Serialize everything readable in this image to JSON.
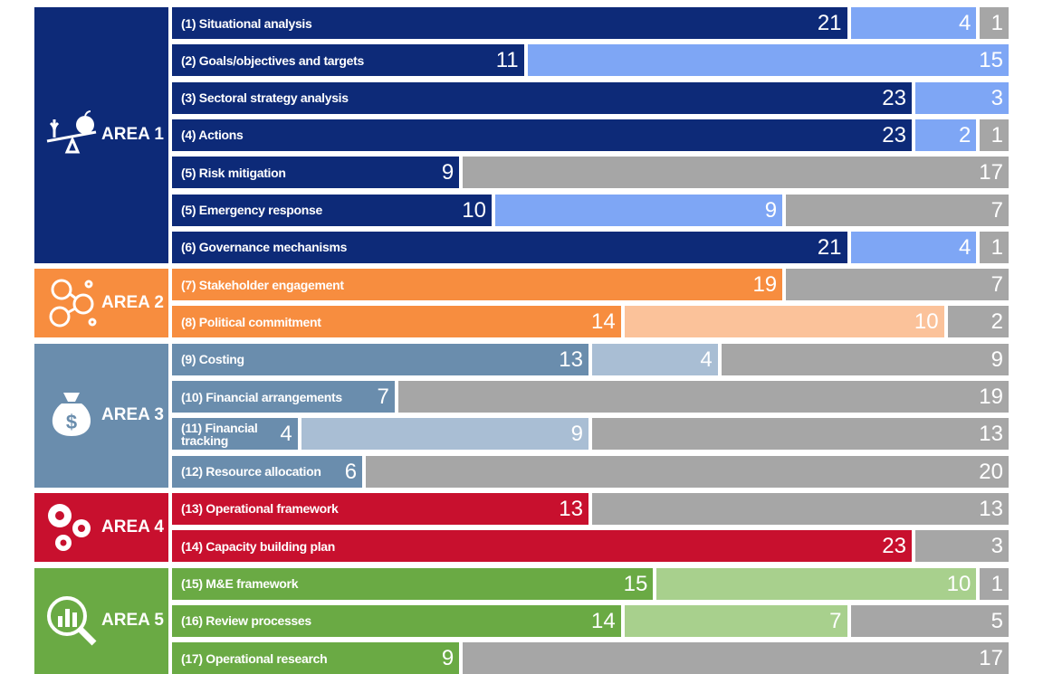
{
  "chart_data": {
    "type": "stacked-bar",
    "orientation": "horizontal",
    "xlim": [
      0,
      26
    ],
    "gap_color": "#a6a6a6",
    "areas": [
      {
        "label": "AREA 1",
        "color": "#0d2a78",
        "light": "#7ea6f5"
      },
      {
        "label": "AREA 2",
        "color": "#f78d3f",
        "light": "#fbc29a"
      },
      {
        "label": "AREA 3",
        "color": "#6a8dad",
        "light": "#a9bed4"
      },
      {
        "label": "AREA 4",
        "color": "#c8102e",
        "light": "#e88a98"
      },
      {
        "label": "AREA 5",
        "color": "#6aaa44",
        "light": "#a8d08d"
      }
    ],
    "rows": [
      {
        "label": "(1) Situational analysis",
        "area": 0,
        "values": [
          21,
          4,
          1
        ]
      },
      {
        "label": "(2) Goals/objectives and targets",
        "area": 0,
        "values": [
          11,
          15,
          null
        ]
      },
      {
        "label": "(3) Sectoral strategy analysis",
        "area": 0,
        "values": [
          23,
          3,
          null
        ]
      },
      {
        "label": "(4) Actions",
        "area": 0,
        "values": [
          23,
          2,
          1
        ]
      },
      {
        "label": "(5) Risk mitigation",
        "area": 0,
        "values": [
          9,
          null,
          17
        ]
      },
      {
        "label": "(5) Emergency response",
        "area": 0,
        "values": [
          10,
          9,
          7
        ]
      },
      {
        "label": "(6) Governance mechanisms",
        "area": 0,
        "values": [
          21,
          4,
          1
        ]
      },
      {
        "label": "(7) Stakeholder engagement",
        "area": 1,
        "values": [
          19,
          null,
          7
        ]
      },
      {
        "label": "(8) Political commitment",
        "area": 1,
        "values": [
          14,
          10,
          2
        ]
      },
      {
        "label": "(9) Costing",
        "area": 2,
        "values": [
          13,
          4,
          9
        ]
      },
      {
        "label": "(10) Financial arrangements",
        "area": 2,
        "values": [
          7,
          null,
          19
        ]
      },
      {
        "label": "(11) Financial tracking",
        "area": 2,
        "values": [
          4,
          9,
          13
        ]
      },
      {
        "label": "(12) Resource allocation",
        "area": 2,
        "values": [
          6,
          null,
          20
        ]
      },
      {
        "label": "(13) Operational framework",
        "area": 3,
        "values": [
          13,
          null,
          13
        ]
      },
      {
        "label": "(14) Capacity building plan",
        "area": 3,
        "values": [
          23,
          null,
          3
        ]
      },
      {
        "label": "(15) M&E framework",
        "area": 4,
        "values": [
          15,
          10,
          1
        ]
      },
      {
        "label": "(16) Review processes",
        "area": 4,
        "values": [
          14,
          7,
          5
        ]
      },
      {
        "label": "(17) Operational research",
        "area": 4,
        "values": [
          9,
          null,
          17
        ]
      }
    ]
  }
}
